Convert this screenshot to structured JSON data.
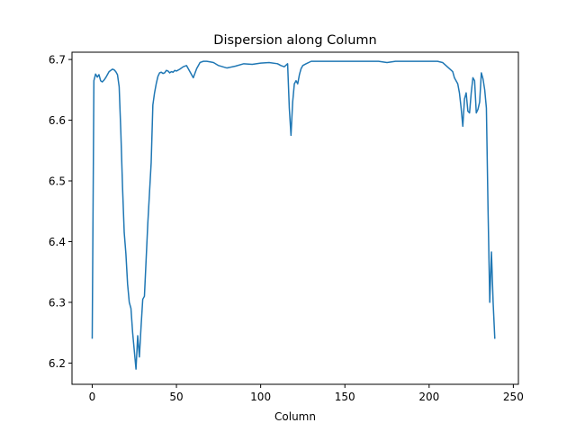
{
  "chart_data": {
    "type": "line",
    "title": "Dispersion along Column",
    "xlabel": "Column",
    "ylabel": "",
    "xlim": [
      -12,
      253
    ],
    "ylim": [
      6.165,
      6.712
    ],
    "xticks": [
      0,
      50,
      100,
      150,
      200,
      250
    ],
    "xtick_labels": [
      "0",
      "50",
      "100",
      "150",
      "200",
      "250"
    ],
    "yticks": [
      6.2,
      6.3,
      6.4,
      6.5,
      6.6,
      6.7
    ],
    "ytick_labels": [
      "6.2",
      "6.3",
      "6.4",
      "6.5",
      "6.6",
      "6.7"
    ],
    "grid": false,
    "line_color": "#1f77b4",
    "series": [
      {
        "name": "",
        "x": [
          0,
          1,
          2,
          3,
          4,
          5,
          6,
          7,
          8,
          9,
          10,
          11,
          12,
          13,
          14,
          15,
          16,
          17,
          18,
          19,
          20,
          21,
          22,
          23,
          24,
          25,
          26,
          27,
          28,
          29,
          30,
          31,
          32,
          33,
          34,
          35,
          36,
          37,
          38,
          39,
          40,
          41,
          42,
          43,
          44,
          45,
          46,
          47,
          48,
          49,
          50,
          52,
          54,
          56,
          58,
          60,
          62,
          64,
          66,
          68,
          70,
          72,
          75,
          80,
          85,
          90,
          95,
          100,
          105,
          110,
          112,
          114,
          116,
          117,
          118,
          119,
          120,
          121,
          122,
          123,
          124,
          125,
          127,
          130,
          135,
          140,
          145,
          150,
          160,
          170,
          175,
          180,
          190,
          200,
          205,
          208,
          210,
          212,
          214,
          215,
          216,
          217,
          218,
          219,
          220,
          221,
          222,
          223,
          224,
          225,
          226,
          227,
          228,
          229,
          230,
          231,
          232,
          233,
          234,
          235,
          236,
          237,
          238,
          239
        ],
        "values": [
          6.24,
          6.665,
          6.676,
          6.671,
          6.675,
          6.665,
          6.663,
          6.666,
          6.67,
          6.675,
          6.68,
          6.682,
          6.684,
          6.683,
          6.68,
          6.675,
          6.655,
          6.58,
          6.49,
          6.415,
          6.38,
          6.33,
          6.3,
          6.29,
          6.25,
          6.22,
          6.19,
          6.245,
          6.21,
          6.26,
          6.305,
          6.31,
          6.37,
          6.43,
          6.48,
          6.53,
          6.625,
          6.645,
          6.66,
          6.672,
          6.678,
          6.679,
          6.677,
          6.678,
          6.682,
          6.681,
          6.678,
          6.68,
          6.679,
          6.682,
          6.681,
          6.684,
          6.688,
          6.69,
          6.68,
          6.67,
          6.685,
          6.695,
          6.697,
          6.697,
          6.696,
          6.695,
          6.69,
          6.686,
          6.689,
          6.693,
          6.692,
          6.694,
          6.695,
          6.693,
          6.69,
          6.688,
          6.693,
          6.62,
          6.575,
          6.63,
          6.66,
          6.665,
          6.66,
          6.675,
          6.685,
          6.69,
          6.693,
          6.697,
          6.697,
          6.697,
          6.697,
          6.697,
          6.697,
          6.697,
          6.695,
          6.697,
          6.697,
          6.697,
          6.697,
          6.695,
          6.69,
          6.685,
          6.68,
          6.67,
          6.665,
          6.66,
          6.645,
          6.62,
          6.59,
          6.635,
          6.645,
          6.615,
          6.612,
          6.645,
          6.67,
          6.665,
          6.612,
          6.618,
          6.63,
          6.678,
          6.668,
          6.65,
          6.62,
          6.45,
          6.3,
          6.383,
          6.3,
          6.24
        ]
      }
    ]
  }
}
